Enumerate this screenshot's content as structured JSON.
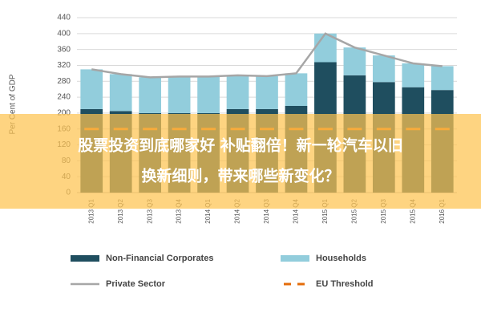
{
  "chart_data": {
    "type": "stacked_bar",
    "ylabel": "Per Cent of GDP",
    "categories": [
      "2013 Q1",
      "2013 Q2",
      "2013 Q3",
      "2013 Q4",
      "2014 Q1",
      "2014 Q2",
      "2014 Q3",
      "2014 Q4",
      "2015 Q1",
      "2015 Q2",
      "2015 Q3",
      "2015 Q4",
      "2016 Q1"
    ],
    "series": [
      {
        "name": "Non-Financial Corporates",
        "color": "#1f4e5f",
        "values": [
          210,
          205,
          200,
          200,
          200,
          210,
          210,
          218,
          328,
          295,
          278,
          265,
          258
        ]
      },
      {
        "name": "Households",
        "color": "#92cddc",
        "values": [
          100,
          93,
          90,
          92,
          92,
          85,
          83,
          82,
          72,
          70,
          67,
          60,
          60
        ]
      }
    ],
    "lines": [
      {
        "name": "Private Sector",
        "color": "#a6a6a6",
        "values": [
          310,
          298,
          290,
          292,
          292,
          295,
          293,
          300,
          400,
          365,
          345,
          325,
          318
        ]
      },
      {
        "name": "EU Threshold",
        "color": "#e46c0a",
        "dashed": true,
        "values": [
          160,
          160,
          160,
          160,
          160,
          160,
          160,
          160,
          160,
          160,
          160,
          160,
          160
        ]
      }
    ],
    "ylim": [
      0,
      440
    ],
    "yticks": [
      0,
      40,
      80,
      120,
      160,
      200,
      240,
      280,
      320,
      360,
      400,
      440
    ],
    "grid": true
  },
  "banner": {
    "text_line1": "股票投资到底哪家好 补贴翻倍！新一轮汽车以旧",
    "text_line2": "换新细则，带来哪些新变化？"
  }
}
